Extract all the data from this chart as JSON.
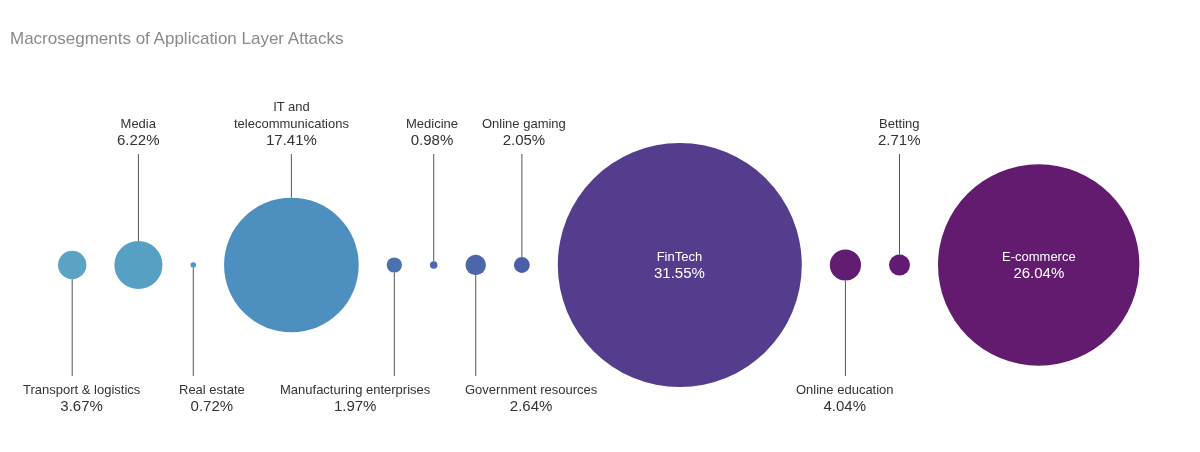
{
  "chart_data": {
    "type": "other",
    "title": "Macrosegments of Application Layer Attacks",
    "categories": [
      "Transport & logistics",
      "Media",
      "Real estate",
      "IT and\ntelecommunications",
      "Manufacturing enterprises",
      "Medicine",
      "Government resources",
      "Online gaming",
      "FinTech",
      "Online education",
      "Betting",
      "E-commerce"
    ],
    "values": [
      3.67,
      6.22,
      0.72,
      17.41,
      1.97,
      0.98,
      2.64,
      2.05,
      31.55,
      4.04,
      2.71,
      26.04
    ],
    "value_labels": [
      "3.67%",
      "6.22%",
      "0.72%",
      "17.41%",
      "1.97%",
      "0.98%",
      "2.64%",
      "2.05%",
      "31.55%",
      "4.04%",
      "2.71%",
      "26.04%"
    ],
    "colors": [
      "#5ba3c4",
      "#56a0c3",
      "#4f97bf",
      "#4d8fbf",
      "#4a72ad",
      "#4a6aac",
      "#4b66ab",
      "#4a5eaa",
      "#553d8e",
      "#611d72",
      "#611b73",
      "#631b70"
    ]
  }
}
